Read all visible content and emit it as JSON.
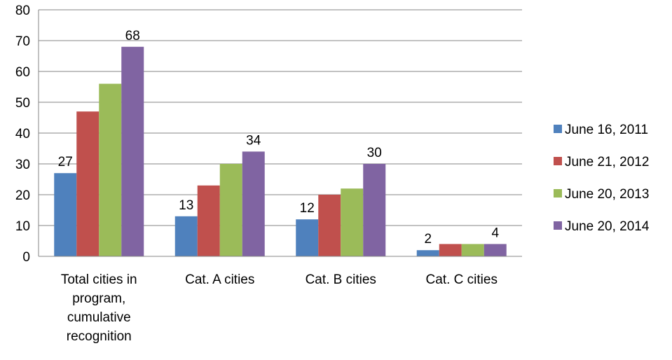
{
  "chart_data": {
    "type": "bar",
    "categories": [
      [
        "Total cities in",
        "program,",
        "cumulative",
        "recognition"
      ],
      [
        "Cat. A cities"
      ],
      [
        "Cat. B cities"
      ],
      [
        "Cat. C cities"
      ]
    ],
    "series": [
      {
        "name": "June 16, 2011",
        "color": "#4F81BD",
        "values": [
          27,
          13,
          12,
          2
        ]
      },
      {
        "name": "June 21, 2012",
        "color": "#C0504D",
        "values": [
          47,
          23,
          20,
          4
        ]
      },
      {
        "name": "June 20, 2013",
        "color": "#9BBB59",
        "values": [
          56,
          30,
          22,
          4
        ]
      },
      {
        "name": "June 20, 2014",
        "color": "#8064A2",
        "values": [
          68,
          34,
          30,
          4
        ]
      }
    ],
    "data_labels": [
      {
        "series": 0,
        "category": 0,
        "text": "27"
      },
      {
        "series": 3,
        "category": 0,
        "text": "68"
      },
      {
        "series": 0,
        "category": 1,
        "text": "13"
      },
      {
        "series": 3,
        "category": 1,
        "text": "34"
      },
      {
        "series": 0,
        "category": 2,
        "text": "12"
      },
      {
        "series": 3,
        "category": 2,
        "text": "30"
      },
      {
        "series": 0,
        "category": 3,
        "text": "2"
      },
      {
        "series": 3,
        "category": 3,
        "text": "4"
      }
    ],
    "yticks": [
      "0",
      "10",
      "20",
      "30",
      "40",
      "50",
      "60",
      "70",
      "80"
    ],
    "ylim": [
      0,
      80
    ],
    "grid": true,
    "legend_position": "right"
  }
}
